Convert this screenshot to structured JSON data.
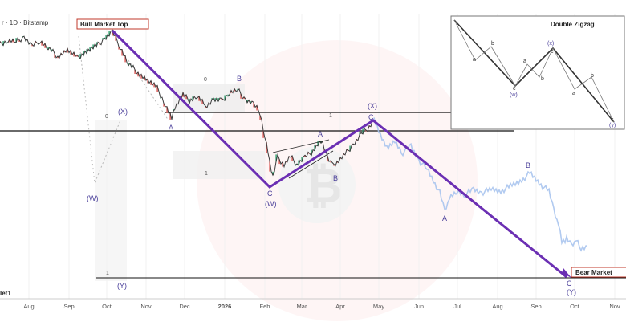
{
  "header": {
    "symbol": "r · 1D · Bitstamp",
    "watermark_label": "let1"
  },
  "callouts": {
    "top": "Bull Market Top",
    "bottom": "Bear Market"
  },
  "inset": {
    "title": "Double Zigzag",
    "labels": [
      "a",
      "b",
      "c",
      "(w)",
      "(x)",
      "a",
      "b",
      "c",
      "a",
      "b",
      "c",
      "(y)"
    ]
  },
  "colors": {
    "price": "#3b3b3b",
    "projection": "#a9c4ee",
    "wave_path": "#6b2fb3",
    "wave_label": "#4a3f9a",
    "up_candle": "#2f9e6d",
    "down_candle": "#d9534f",
    "horizontal_line": "#111111",
    "box_fill": "#ececec"
  },
  "chart_data": {
    "type": "line",
    "title": "",
    "x_axis": {
      "tick_labels": [
        "Aug",
        "Sep",
        "Oct",
        "Nov",
        "Dec",
        "2026",
        "Feb",
        "Mar",
        "Apr",
        "May",
        "Jun",
        "Jul",
        "Aug",
        "Sep",
        "Oct",
        "Nov"
      ]
    },
    "wave_labels": [
      "(W)",
      "(X)",
      "A",
      "B",
      "C",
      "(W)",
      "(X)",
      "C",
      "A",
      "B",
      "A",
      "B",
      "C",
      "(Y)",
      "(Y)",
      "0",
      "0",
      "1",
      "1",
      "1"
    ],
    "wave_path": {
      "name": "",
      "points": [
        [
          "Oct",
          "Bull Market Top"
        ],
        [
          "Feb",
          "(W)"
        ],
        [
          "May",
          "(X)"
        ],
        [
          "Oct",
          "(Y)"
        ]
      ]
    },
    "grid": true,
    "legend": "none"
  }
}
